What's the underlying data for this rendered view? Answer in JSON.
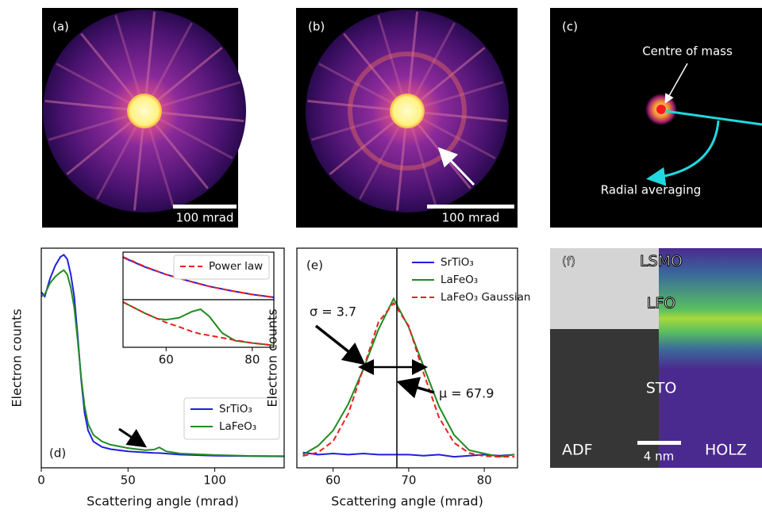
{
  "panels": {
    "a": {
      "label": "(a)",
      "scale_bar": "100 mrad"
    },
    "b": {
      "label": "(b)",
      "scale_bar": "100 mrad"
    },
    "c": {
      "label": "(c)",
      "annotations": [
        "Centre of mass",
        "Radial averaging"
      ]
    },
    "f": {
      "label": "(f)",
      "regions": [
        "LSMO",
        "LFO",
        "STO"
      ],
      "left_label": "ADF",
      "scale_bar": "4 nm",
      "right_label": "HOLZ"
    }
  },
  "chart_data": [
    {
      "type": "line",
      "label": "(d)",
      "x_label": "Scattering angle (mrad)",
      "y_label": "Electron counts",
      "xlim": [
        0,
        140
      ],
      "ylim": [
        0,
        100
      ],
      "xticks": [
        0,
        50,
        100
      ],
      "legend": "lower right",
      "x": [
        0,
        2,
        5,
        8,
        11,
        13,
        15,
        17,
        19,
        21,
        23,
        25,
        27,
        30,
        35,
        40,
        50,
        60,
        65,
        68,
        72,
        80,
        100,
        120,
        140
      ],
      "series": [
        {
          "name": "SrTiO₃",
          "color": "#1f1fe0",
          "values": [
            80,
            78,
            86,
            92,
            96,
            97,
            95,
            88,
            78,
            60,
            40,
            25,
            17,
            12,
            9.5,
            8.5,
            7.5,
            7,
            6.8,
            6.7,
            6.5,
            6,
            5.5,
            5.3,
            5.2
          ]
        },
        {
          "name": "LaFeO₃",
          "color": "#228b22",
          "values": [
            78,
            79,
            84,
            87,
            89,
            90,
            88,
            82,
            73,
            58,
            41,
            28,
            20,
            15,
            12,
            10.5,
            9,
            8,
            8.3,
            9.3,
            7.5,
            6.5,
            5.8,
            5.4,
            5.3
          ]
        }
      ]
    },
    {
      "type": "line",
      "xlim": [
        50,
        85
      ],
      "ylim": [
        0,
        1
      ],
      "legend": "upper right",
      "x": [
        50,
        55,
        60,
        65,
        70,
        75,
        80,
        85
      ],
      "series": [
        {
          "color": "#1f1fe0",
          "values": [
            0.89,
            0.69,
            0.53,
            0.4,
            0.28,
            0.19,
            0.11,
            0.05
          ]
        },
        {
          "name": "Power law",
          "color": "#e8201e",
          "linestyle": "dashed",
          "values": [
            0.9,
            0.7,
            0.53,
            0.4,
            0.28,
            0.19,
            0.11,
            0.05
          ]
        }
      ]
    },
    {
      "type": "line",
      "xlim": [
        50,
        85
      ],
      "ylim": [
        0,
        1
      ],
      "xticks": [
        60,
        80
      ],
      "x": [
        50,
        55,
        58,
        60,
        63,
        66,
        68,
        70,
        73,
        76,
        80,
        85
      ],
      "series": [
        {
          "color": "#228b22",
          "values": [
            0.95,
            0.72,
            0.6,
            0.58,
            0.62,
            0.75,
            0.8,
            0.65,
            0.3,
            0.14,
            0.09,
            0.04
          ]
        },
        {
          "color": "#e8201e",
          "linestyle": "dashed",
          "values": [
            0.95,
            0.72,
            0.6,
            0.52,
            0.43,
            0.33,
            0.28,
            0.25,
            0.2,
            0.15,
            0.09,
            0.04
          ]
        }
      ]
    },
    {
      "type": "line",
      "label": "(e)",
      "x_label": "Scattering angle (mrad)",
      "y_label": "Electron counts",
      "xlim": [
        55.2,
        84.4
      ],
      "ylim": [
        0,
        100
      ],
      "xticks": [
        60,
        70,
        80
      ],
      "legend": "upper right",
      "annotations": [
        "σ = 3.7",
        "μ = 67.9"
      ],
      "x": [
        56,
        58,
        60,
        62,
        64,
        66,
        68,
        70,
        72,
        74,
        76,
        78,
        80,
        82,
        84
      ],
      "series": [
        {
          "name": "SrTiO₃",
          "color": "#1f1fe0",
          "values": [
            7,
            6,
            6.5,
            6,
            6.5,
            6,
            6,
            6,
            5.5,
            6,
            5,
            5.5,
            6,
            5.5,
            6
          ]
        },
        {
          "name": "LaFeO₃",
          "color": "#228b22",
          "values": [
            6,
            10,
            17,
            29,
            45,
            63,
            77,
            64,
            46,
            28,
            15,
            8,
            6.5,
            5,
            6
          ]
        },
        {
          "name": "LaFeO₃ Gaussian",
          "color": "#e8201e",
          "linestyle": "dashed",
          "values": [
            5.4,
            7,
            12.1,
            24.6,
            45.2,
            66.3,
            75,
            64.6,
            42.9,
            23,
            11.4,
            6.7,
            5.3,
            5,
            5
          ]
        }
      ]
    }
  ]
}
